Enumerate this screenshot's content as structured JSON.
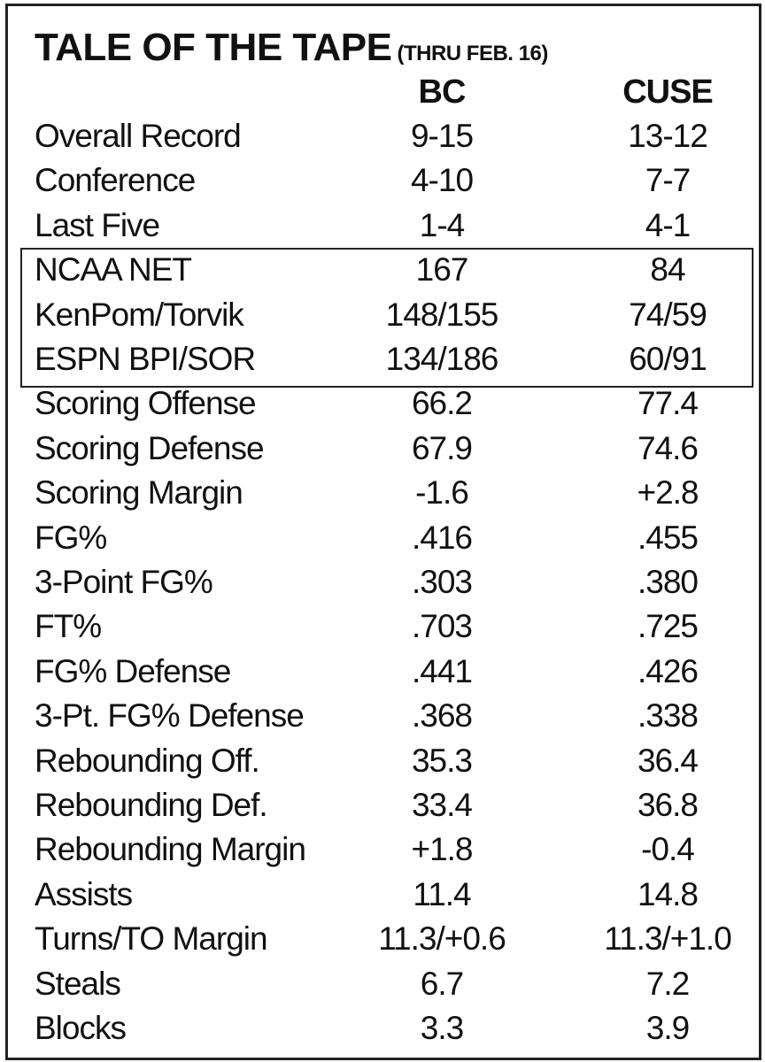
{
  "header": {
    "title": "TALE OF THE TAPE",
    "subtitle": "(THRU FEB. 16)"
  },
  "table": {
    "columns": [
      "BC",
      "CUSE"
    ],
    "rows": [
      [
        "Overall Record",
        "9-15",
        "13-12"
      ],
      [
        "Conference",
        "4-10",
        "7-7"
      ],
      [
        "Last Five",
        "1-4",
        "4-1"
      ],
      [
        "NCAA NET",
        "167",
        "84"
      ],
      [
        "KenPom/Torvik",
        "148/155",
        "74/59"
      ],
      [
        "ESPN BPI/SOR",
        "134/186",
        "60/91"
      ],
      [
        "Scoring Offense",
        "66.2",
        "77.4"
      ],
      [
        "Scoring Defense",
        "67.9",
        "74.6"
      ],
      [
        "Scoring Margin",
        "-1.6",
        "+2.8"
      ],
      [
        "FG%",
        ".416",
        ".455"
      ],
      [
        "3-Point FG%",
        ".303",
        ".380"
      ],
      [
        "FT%",
        ".703",
        ".725"
      ],
      [
        "FG% Defense",
        ".441",
        ".426"
      ],
      [
        "3-Pt. FG% Defense",
        ".368",
        ".338"
      ],
      [
        "Rebounding Off.",
        "35.3",
        "36.4"
      ],
      [
        "Rebounding Def.",
        "33.4",
        "36.8"
      ],
      [
        "Rebounding Margin",
        "+1.8",
        "-0.4"
      ],
      [
        "Assists",
        "11.4",
        "14.8"
      ],
      [
        "Turns/TO Margin",
        "11.3/+0.6",
        "11.3/+1.0"
      ],
      [
        "Steals",
        "6.7",
        "7.2"
      ],
      [
        "Blocks",
        "3.3",
        "3.9"
      ]
    ]
  }
}
